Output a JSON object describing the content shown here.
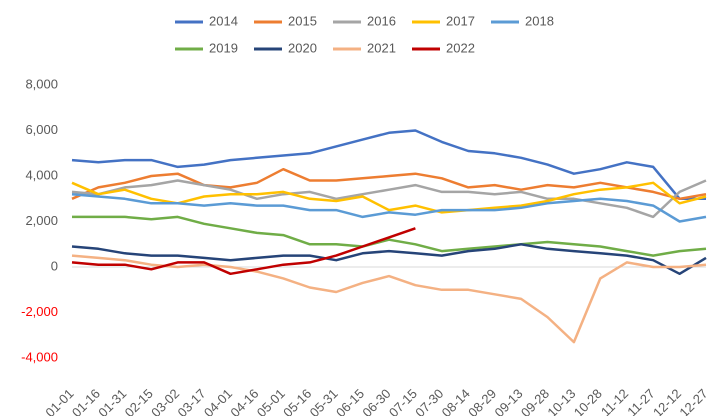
{
  "chart_data": {
    "type": "line",
    "categories": [
      "01-01",
      "01-16",
      "01-31",
      "02-15",
      "03-02",
      "03-17",
      "04-01",
      "04-16",
      "05-01",
      "05-16",
      "05-31",
      "06-15",
      "06-30",
      "07-15",
      "07-30",
      "08-14",
      "08-29",
      "09-13",
      "09-28",
      "10-13",
      "10-28",
      "11-12",
      "11-27",
      "12-12",
      "12-27"
    ],
    "series": [
      {
        "name": "2014",
        "color": "#4472c4",
        "values": [
          4700,
          4600,
          4700,
          4700,
          4400,
          4500,
          4700,
          4800,
          4900,
          5000,
          5300,
          5600,
          5900,
          6000,
          5500,
          5100,
          5000,
          4800,
          4500,
          4100,
          4300,
          4600,
          4400,
          3000,
          3000
        ]
      },
      {
        "name": "2015",
        "color": "#ed7d31",
        "values": [
          3000,
          3500,
          3700,
          4000,
          4100,
          3600,
          3500,
          3700,
          4300,
          3800,
          3800,
          3900,
          4000,
          4100,
          3900,
          3500,
          3600,
          3400,
          3600,
          3500,
          3700,
          3500,
          3300,
          3000,
          3200
        ]
      },
      {
        "name": "2016",
        "color": "#a5a5a5",
        "values": [
          3300,
          3200,
          3500,
          3600,
          3800,
          3600,
          3400,
          3000,
          3200,
          3300,
          3000,
          3200,
          3400,
          3600,
          3300,
          3300,
          3200,
          3300,
          3000,
          3000,
          2800,
          2600,
          2200,
          3300,
          3800
        ]
      },
      {
        "name": "2017",
        "color": "#ffc000",
        "values": [
          3700,
          3200,
          3400,
          3000,
          2800,
          3100,
          3200,
          3200,
          3300,
          3000,
          2900,
          3100,
          2500,
          2700,
          2400,
          2500,
          2600,
          2700,
          2900,
          3200,
          3400,
          3500,
          3700,
          2800,
          3100
        ]
      },
      {
        "name": "2018",
        "color": "#5b9bd5",
        "values": [
          3200,
          3100,
          3000,
          2800,
          2800,
          2700,
          2800,
          2700,
          2700,
          2500,
          2500,
          2200,
          2400,
          2300,
          2500,
          2500,
          2500,
          2600,
          2800,
          2900,
          3000,
          2900,
          2700,
          2000,
          2200
        ]
      },
      {
        "name": "2019",
        "color": "#70ad47",
        "values": [
          2200,
          2200,
          2200,
          2100,
          2200,
          1900,
          1700,
          1500,
          1400,
          1000,
          1000,
          900,
          1200,
          1000,
          700,
          800,
          900,
          1000,
          1100,
          1000,
          900,
          700,
          500,
          700,
          800
        ]
      },
      {
        "name": "2020",
        "color": "#264478",
        "values": [
          900,
          800,
          600,
          500,
          500,
          400,
          300,
          400,
          500,
          500,
          300,
          600,
          700,
          600,
          500,
          700,
          800,
          1000,
          800,
          700,
          600,
          500,
          300,
          -300,
          400
        ]
      },
      {
        "name": "2021",
        "color": "#f4b183",
        "values": [
          500,
          400,
          300,
          100,
          0,
          100,
          0,
          -200,
          -500,
          -900,
          -1100,
          -700,
          -400,
          -800,
          -1000,
          -1000,
          -1200,
          -1400,
          -2200,
          -3300,
          -500,
          200,
          0,
          0,
          100
        ]
      },
      {
        "name": "2022",
        "color": "#c00000",
        "values": [
          200,
          100,
          100,
          -100,
          200,
          200,
          -300,
          -100,
          100,
          200,
          500,
          900,
          1300,
          1700,
          null,
          null,
          null,
          null,
          null,
          null,
          null,
          null,
          null,
          null,
          null
        ]
      }
    ],
    "ylim": [
      -4000,
      8000
    ],
    "yticks": [
      {
        "value": -4000,
        "label": "-4,000"
      },
      {
        "value": -2000,
        "label": "-2,000"
      },
      0,
      {
        "value": 2000,
        "label": "2,000"
      },
      {
        "value": 4000,
        "label": "4,000"
      },
      {
        "value": 6000,
        "label": "6,000"
      },
      {
        "value": 8000,
        "label": "8,000"
      }
    ],
    "grid": false,
    "legend": "top"
  }
}
